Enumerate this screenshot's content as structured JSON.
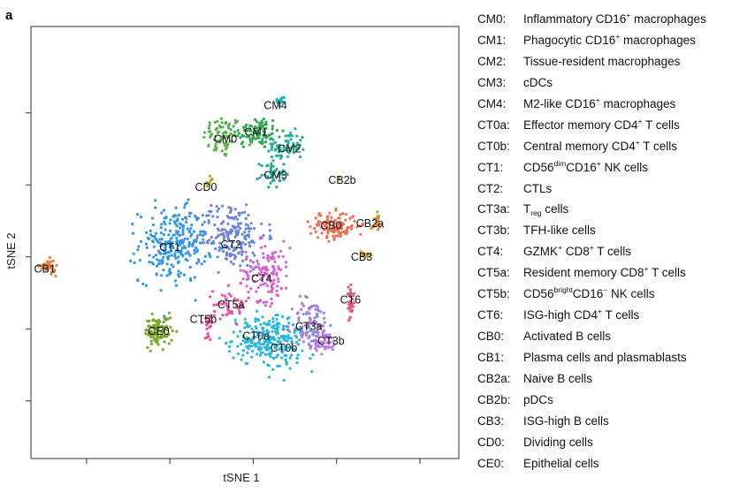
{
  "panel_letter": "a",
  "chart_data": {
    "type": "scatter",
    "xlabel": "tSNE 1",
    "ylabel": "tSNE 2",
    "xlim": [
      -40,
      37
    ],
    "ylim": [
      -42,
      48
    ],
    "x_ticks": [
      -30,
      -15,
      0,
      15,
      30
    ],
    "y_ticks": [
      -30,
      -15,
      0,
      15,
      30
    ],
    "tick_labels_shown": false,
    "grid": false,
    "legend_position": "right",
    "clusters": [
      {
        "id": "CM0",
        "color": "#56b44a",
        "center": [
          -5.5,
          25.0
        ],
        "spread": [
          2.5,
          3.2
        ],
        "n": 70,
        "label_at": [
          -5.0,
          24.5
        ]
      },
      {
        "id": "CM1",
        "color": "#2fa84f",
        "center": [
          0.5,
          26.0
        ],
        "spread": [
          3.0,
          2.5
        ],
        "n": 90,
        "label_at": [
          0.5,
          26.0
        ]
      },
      {
        "id": "CM2",
        "color": "#1fb394",
        "center": [
          6.0,
          23.0
        ],
        "spread": [
          2.5,
          2.2
        ],
        "n": 70,
        "label_at": [
          6.5,
          22.5
        ]
      },
      {
        "id": "CM3",
        "color": "#1aaa9a",
        "center": [
          3.5,
          17.5
        ],
        "spread": [
          1.6,
          2.2
        ],
        "n": 40,
        "label_at": [
          4.0,
          17.0
        ]
      },
      {
        "id": "CM4",
        "color": "#17b0b6",
        "center": [
          5.0,
          32.5
        ],
        "spread": [
          0.5,
          1.0
        ],
        "n": 15,
        "label_at": [
          4.0,
          31.5
        ]
      },
      {
        "id": "CT0a",
        "color": "#26b9d9",
        "center": [
          1.0,
          -17.0
        ],
        "spread": [
          4.0,
          3.2
        ],
        "n": 140,
        "label_at": [
          0.5,
          -16.5
        ]
      },
      {
        "id": "CT0b",
        "color": "#24b4e2",
        "center": [
          5.5,
          -18.0
        ],
        "spread": [
          4.0,
          4.0
        ],
        "n": 130,
        "label_at": [
          5.5,
          -19.0
        ]
      },
      {
        "id": "CT1",
        "color": "#2b98e8",
        "center": [
          -14.5,
          2.5
        ],
        "spread": [
          4.3,
          5.5
        ],
        "n": 240,
        "label_at": [
          -15.0,
          2.0
        ]
      },
      {
        "id": "CT2",
        "color": "#6a84e0",
        "center": [
          -4.0,
          4.5
        ],
        "spread": [
          4.5,
          5.0
        ],
        "n": 200,
        "label_at": [
          -4.0,
          2.5
        ]
      },
      {
        "id": "CT3a",
        "color": "#a67ce6",
        "center": [
          10.5,
          -14.0
        ],
        "spread": [
          2.5,
          4.0
        ],
        "n": 90,
        "label_at": [
          10.0,
          -14.5
        ]
      },
      {
        "id": "CT3b",
        "color": "#c179e6",
        "center": [
          13.0,
          -18.0
        ],
        "spread": [
          1.6,
          1.5
        ],
        "n": 35,
        "label_at": [
          14.0,
          -17.5
        ]
      },
      {
        "id": "CT4",
        "color": "#d960d0",
        "center": [
          2.5,
          -3.0
        ],
        "spread": [
          3.0,
          4.5
        ],
        "n": 120,
        "label_at": [
          1.5,
          -4.5
        ]
      },
      {
        "id": "CT5a",
        "color": "#ea4ea4",
        "center": [
          -4.0,
          -10.0
        ],
        "spread": [
          2.3,
          2.5
        ],
        "n": 50,
        "label_at": [
          -4.0,
          -10.0
        ]
      },
      {
        "id": "CT5b",
        "color": "#e84493",
        "center": [
          -8.0,
          -13.5
        ],
        "spread": [
          0.5,
          2.0
        ],
        "n": 18,
        "label_at": [
          -9.0,
          -13.0
        ]
      },
      {
        "id": "CT6",
        "color": "#ef4f86",
        "center": [
          17.5,
          -10.0
        ],
        "spread": [
          0.5,
          2.5
        ],
        "n": 30,
        "label_at": [
          17.5,
          -9.0
        ]
      },
      {
        "id": "CB0",
        "color": "#ef6f52",
        "center": [
          14.5,
          6.5
        ],
        "spread": [
          3.0,
          2.0
        ],
        "n": 130,
        "label_at": [
          14.0,
          6.5
        ]
      },
      {
        "id": "CB1",
        "color": "#e8823a",
        "center": [
          -37.0,
          -2.0
        ],
        "spread": [
          1.0,
          1.0
        ],
        "n": 35,
        "label_at": [
          -37.5,
          -2.5
        ]
      },
      {
        "id": "CB2a",
        "color": "#d88a28",
        "center": [
          22.5,
          7.5
        ],
        "spread": [
          0.6,
          1.2
        ],
        "n": 20,
        "label_at": [
          21.0,
          7.0
        ]
      },
      {
        "id": "CB2b",
        "color": "#c8921f",
        "center": [
          15.5,
          16.5
        ],
        "spread": [
          0.2,
          0.2
        ],
        "n": 2,
        "label_at": [
          16.0,
          16.0
        ]
      },
      {
        "id": "CB3",
        "color": "#c0a019",
        "center": [
          20.0,
          0.5
        ],
        "spread": [
          0.6,
          0.6
        ],
        "n": 15,
        "label_at": [
          19.5,
          0.0
        ]
      },
      {
        "id": "CD0",
        "color": "#b7a11b",
        "center": [
          -8.0,
          15.5
        ],
        "spread": [
          0.5,
          0.8
        ],
        "n": 10,
        "label_at": [
          -8.5,
          14.5
        ]
      },
      {
        "id": "CE0",
        "color": "#7da82a",
        "center": [
          -17.0,
          -15.5
        ],
        "spread": [
          1.8,
          2.2
        ],
        "n": 110,
        "label_at": [
          -17.0,
          -15.5
        ]
      }
    ]
  },
  "legend": [
    {
      "code": "CM0:",
      "pre": "Inflammatory CD16",
      "sup": "+",
      "post": " macrophages"
    },
    {
      "code": "CM1:",
      "pre": "Phagocytic CD16",
      "sup": "+",
      "post": " macrophages"
    },
    {
      "code": "CM2:",
      "pre": "Tissue-resident macrophages"
    },
    {
      "code": "CM3:",
      "pre": "cDCs"
    },
    {
      "code": "CM4:",
      "pre": "M2-like CD16",
      "sup": "+",
      "post": " macrophages"
    },
    {
      "code": "CT0a:",
      "pre": "Effector memory CD4",
      "sup": "+",
      "post": " T cells"
    },
    {
      "code": "CT0b:",
      "pre": "Central memory CD4",
      "sup": "+",
      "post": " T cells"
    },
    {
      "code": "CT1:",
      "pre": "CD56",
      "sup": "dim",
      "post": "CD16",
      "sup2": "+",
      "post2": " NK cells"
    },
    {
      "code": "CT2:",
      "pre": "CTLs"
    },
    {
      "code": "CT3a:",
      "pre": "T",
      "sub": "reg",
      "post": " cells"
    },
    {
      "code": "CT3b:",
      "pre": "TFH-like cells"
    },
    {
      "code": "CT4:",
      "pre": "GZMK",
      "sup": "+",
      "post": " CD8",
      "sup2": "+",
      "post2": " T cells"
    },
    {
      "code": "CT5a:",
      "pre": "Resident memory CD8",
      "sup": "+",
      "post": " T cells"
    },
    {
      "code": "CT5b:",
      "pre": "CD56",
      "sup": "bright",
      "post": "CD16",
      "sup2": "−",
      "post2": " NK cells"
    },
    {
      "code": "CT6:",
      "pre": "ISG-high CD4",
      "sup": "+",
      "post": " T cells"
    },
    {
      "code": "CB0:",
      "pre": "Activated B cells"
    },
    {
      "code": "CB1:",
      "pre": "Plasma cells and plasmablasts"
    },
    {
      "code": "CB2a:",
      "pre": "Naive B cells"
    },
    {
      "code": "CB2b:",
      "pre": "pDCs"
    },
    {
      "code": "CB3:",
      "pre": "ISG-high B cells"
    },
    {
      "code": "CD0:",
      "pre": "Dividing cells"
    },
    {
      "code": "CE0:",
      "pre": "Epithelial cells"
    }
  ]
}
